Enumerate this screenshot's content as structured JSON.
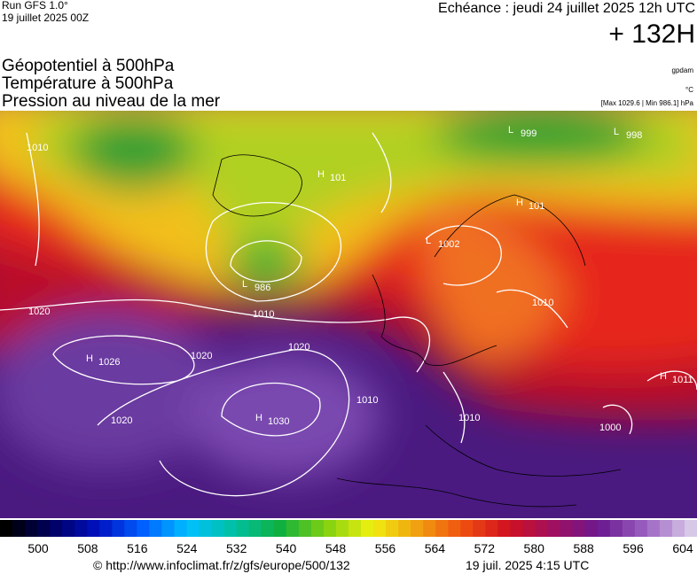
{
  "header": {
    "run": "Run GFS 1.0°",
    "run_date": "19 juillet 2025 00Z",
    "valid_time": "Echéance : jeudi 24 juillet 2025 12h UTC",
    "offset": "+ 132H",
    "fields": [
      "Géopotentiel à 500hPa",
      "Température à 500hPa",
      "Pression au niveau de la mer"
    ],
    "unit_geopotential": "gpdam",
    "unit_temperature": "°C",
    "pressure_range": "[Max 1029.6 | Min 986.1] hPa"
  },
  "map": {
    "centers": [
      {
        "kind": "L",
        "value": "999"
      },
      {
        "kind": "L",
        "value": "998"
      },
      {
        "kind": "H",
        "value": "101"
      },
      {
        "kind": "L",
        "value": "986"
      },
      {
        "kind": "L",
        "value": "1002"
      },
      {
        "kind": "H",
        "value": "101"
      },
      {
        "kind": "H",
        "value": "1026"
      },
      {
        "kind": "H",
        "value": "1030"
      },
      {
        "kind": "H",
        "value": "1011"
      }
    ],
    "isobar_labels": [
      "1010",
      "1020",
      "1010",
      "1020",
      "1020",
      "1020",
      "1010",
      "1010",
      "1000",
      "1010"
    ]
  },
  "colorbar": {
    "labels": [
      500,
      508,
      516,
      524,
      532,
      540,
      548,
      556,
      564,
      572,
      580,
      588,
      596,
      604
    ]
  },
  "footer": {
    "source": "© http://www.infoclimat.fr/z/gfs/europe/500/132",
    "generated": "19 juil. 2025  4:15 UTC"
  }
}
